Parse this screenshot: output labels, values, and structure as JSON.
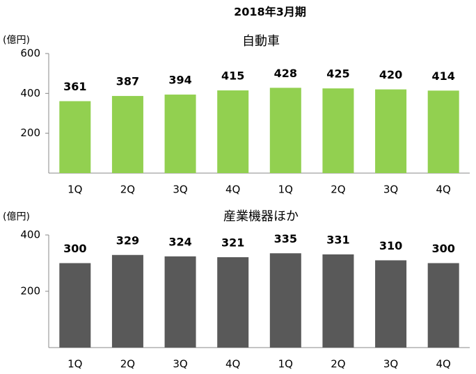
{
  "chart_data": [
    {
      "type": "bar",
      "title": "2018年3月期",
      "subtitle": "自動車",
      "y_label": "(億円)",
      "categories": [
        "1Q",
        "2Q",
        "3Q",
        "4Q",
        "1Q",
        "2Q",
        "3Q",
        "4Q"
      ],
      "values": [
        361,
        387,
        394,
        415,
        428,
        425,
        420,
        414
      ],
      "color": "#92d050",
      "ylim": [
        0,
        600
      ],
      "yticks": [
        200,
        400,
        600
      ]
    },
    {
      "type": "bar",
      "title": "産業機器ほか",
      "y_label": "(億円)",
      "categories": [
        "1Q",
        "2Q",
        "3Q",
        "4Q",
        "1Q",
        "2Q",
        "3Q",
        "4Q"
      ],
      "values": [
        300,
        329,
        324,
        321,
        335,
        331,
        310,
        300
      ],
      "color": "#595959",
      "ylim": [
        0,
        400
      ],
      "yticks": [
        200,
        400
      ]
    }
  ]
}
